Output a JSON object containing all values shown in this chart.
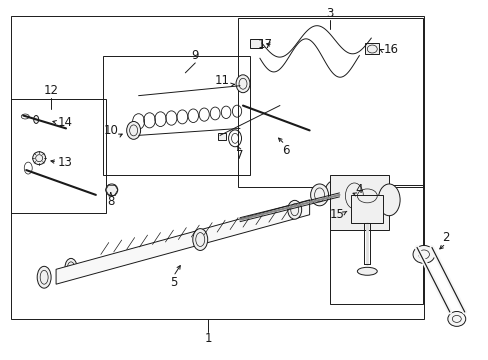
{
  "bg_color": "#ffffff",
  "line_color": "#1a1a1a",
  "fig_width": 4.89,
  "fig_height": 3.6,
  "dpi": 100,
  "lw": 0.7,
  "fs": 8.5
}
